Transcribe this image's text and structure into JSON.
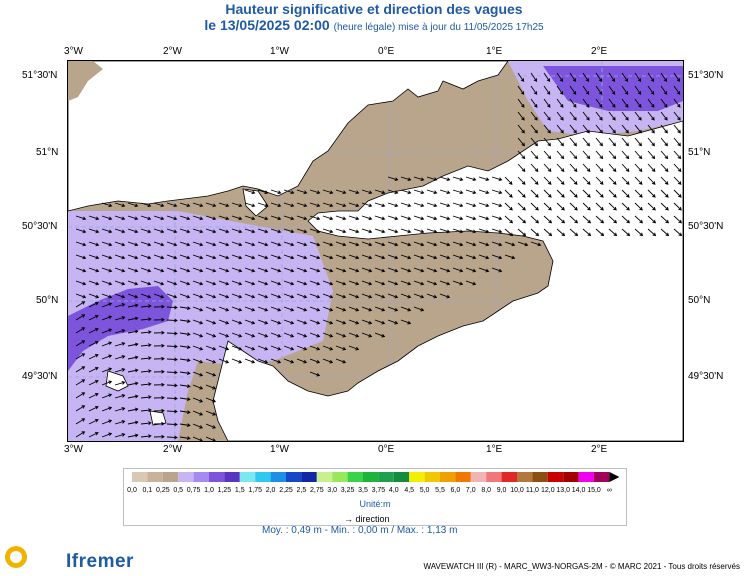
{
  "title": {
    "line1": "Hauteur significative et direction des vagues",
    "date": "le 13/05/2025 02:00",
    "note": "(heure légale) mise à jour du 11/05/2025 17h25"
  },
  "axes": {
    "lon_labels": [
      "3°W",
      "2°W",
      "1°W",
      "0°E",
      "1°E",
      "2°E"
    ],
    "lat_labels": [
      "51°30'N",
      "51°N",
      "50°30'N",
      "50°N",
      "49°30'N"
    ]
  },
  "legend": {
    "levels": [
      "0,0",
      "0,1",
      "0,25",
      "0,5",
      "0,75",
      "1,0",
      "1,25",
      "1,5",
      "1,75",
      "2,0",
      "2,25",
      "2,5",
      "2,75",
      "3,0",
      "3,25",
      "3,5",
      "3,75",
      "4,0",
      "4,5",
      "5,0",
      "5,5",
      "6,0",
      "7,0",
      "8,0",
      "9,0",
      "10,0",
      "11,0",
      "12,0",
      "13,0",
      "14,0",
      "15,0",
      "∞"
    ],
    "colors": [
      "#d9c8b4",
      "#c7b39a",
      "#b8a58b",
      "#c7b5f3",
      "#a58bf0",
      "#7d55dc",
      "#5a36c0",
      "#7ae8f0",
      "#2fc8f0",
      "#1e8fe6",
      "#1548c8",
      "#1028a8",
      "#c8f08c",
      "#98e85a",
      "#3ad24a",
      "#1eb43c",
      "#1ea050",
      "#148c3c",
      "#f0f000",
      "#f0c800",
      "#f0a000",
      "#f07800",
      "#f0b4b4",
      "#f07878",
      "#e02828",
      "#b4783c",
      "#8c5014",
      "#c80000",
      "#a00000",
      "#f000f0",
      "#a0005a"
    ],
    "unit_label": "Unité:m"
  },
  "direction_label": "direction",
  "stats": "Moy. : 0,49 m  -  Min. : 0,00 m / Max. : 1,13 m",
  "footer": "WAVEWATCH III (R) - MARC_WW3-NORGAS-2M - © MARC 2021 - Tous droits réservés",
  "logos": {
    "left": "LOPS",
    "right": "Ifremer"
  }
}
